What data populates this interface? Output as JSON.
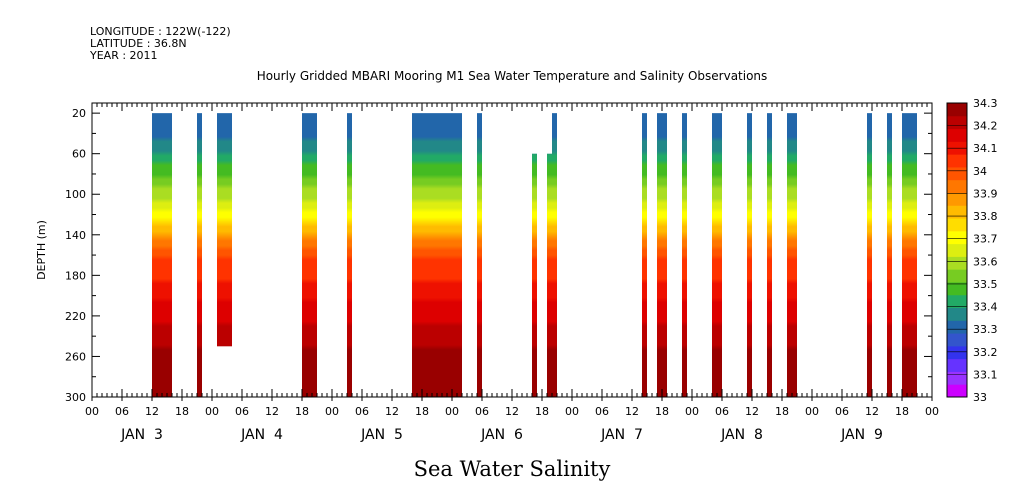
{
  "header": {
    "longitude": "LONGITUDE : 122W(-122)",
    "latitude": "LATITUDE : 36.8N",
    "year": "YEAR : 2011",
    "title": "Hourly Gridded MBARI Mooring M1 Sea Water Temperature and Salinity Observations"
  },
  "footer": {
    "variable_title": "Sea Water Salinity"
  },
  "chart_data": {
    "type": "heatmap",
    "title": "Hourly Gridded MBARI Mooring M1 Sea Water Temperature and Salinity Observations",
    "xlabel": "",
    "ylabel": "DEPTH (m)",
    "variable": "Sea Water Salinity",
    "x_tick_labels": [
      "00",
      "06",
      "12",
      "18",
      "00",
      "06",
      "12",
      "18",
      "00",
      "06",
      "12",
      "18",
      "00",
      "06",
      "12",
      "18",
      "00",
      "06",
      "12",
      "18",
      "00",
      "06",
      "12",
      "18",
      "00",
      "06",
      "12",
      "18",
      "00"
    ],
    "day_labels": [
      "JAN  3",
      "JAN  4",
      "JAN  5",
      "JAN  6",
      "JAN  7",
      "JAN  8",
      "JAN  9"
    ],
    "xlim_hours": [
      0,
      168
    ],
    "y_ticks": [
      20,
      60,
      100,
      140,
      180,
      220,
      260,
      300
    ],
    "ylim": [
      300,
      10
    ],
    "colorbar": {
      "min": 33.0,
      "max": 34.3,
      "labels": [
        "34.3",
        "34.2",
        "34.1",
        "34",
        "33.9",
        "33.8",
        "33.7",
        "33.6",
        "33.5",
        "33.4",
        "33.3",
        "33.2",
        "33.1",
        "33"
      ],
      "colors": [
        "#cc00ff",
        "#9933ff",
        "#6633ff",
        "#3333ee",
        "#3355cc",
        "#2266aa",
        "#228888",
        "#22aa66",
        "#44bb22",
        "#77cc22",
        "#aadd22",
        "#ddee11",
        "#ffff00",
        "#ffdd00",
        "#ffbb00",
        "#ff9900",
        "#ff7700",
        "#ff5500",
        "#ff3300",
        "#ee1100",
        "#dd0000",
        "#bb0000",
        "#990000"
      ]
    },
    "columns": [
      {
        "start": 12,
        "end": 16,
        "top": 20,
        "bottom": 300
      },
      {
        "start": 21,
        "end": 22,
        "top": 20,
        "bottom": 300
      },
      {
        "start": 25,
        "end": 28,
        "top": 20,
        "bottom": 250
      },
      {
        "start": 42,
        "end": 45,
        "top": 20,
        "bottom": 300
      },
      {
        "start": 51,
        "end": 52,
        "top": 20,
        "bottom": 300
      },
      {
        "start": 64,
        "end": 74,
        "top": 20,
        "bottom": 300
      },
      {
        "start": 77,
        "end": 78,
        "top": 20,
        "bottom": 300
      },
      {
        "start": 88,
        "end": 89,
        "top": 60,
        "bottom": 300
      },
      {
        "start": 91,
        "end": 92,
        "top": 60,
        "bottom": 300
      },
      {
        "start": 92,
        "end": 93,
        "top": 20,
        "bottom": 300
      },
      {
        "start": 110,
        "end": 111,
        "top": 20,
        "bottom": 300
      },
      {
        "start": 113,
        "end": 115,
        "top": 20,
        "bottom": 300
      },
      {
        "start": 118,
        "end": 119,
        "top": 20,
        "bottom": 300
      },
      {
        "start": 124,
        "end": 126,
        "top": 20,
        "bottom": 300
      },
      {
        "start": 131,
        "end": 132,
        "top": 20,
        "bottom": 300
      },
      {
        "start": 135,
        "end": 136,
        "top": 20,
        "bottom": 300
      },
      {
        "start": 139,
        "end": 141,
        "top": 20,
        "bottom": 300
      },
      {
        "start": 155,
        "end": 156,
        "top": 20,
        "bottom": 300
      },
      {
        "start": 159,
        "end": 160,
        "top": 20,
        "bottom": 300
      },
      {
        "start": 162,
        "end": 165,
        "top": 20,
        "bottom": 300
      }
    ],
    "salinity_profile": [
      {
        "depth": 20,
        "value": 33.3
      },
      {
        "depth": 50,
        "value": 33.35
      },
      {
        "depth": 70,
        "value": 33.45
      },
      {
        "depth": 90,
        "value": 33.55
      },
      {
        "depth": 110,
        "value": 33.65
      },
      {
        "depth": 125,
        "value": 33.75
      },
      {
        "depth": 140,
        "value": 33.85
      },
      {
        "depth": 155,
        "value": 34.0
      },
      {
        "depth": 180,
        "value": 34.05
      },
      {
        "depth": 210,
        "value": 34.15
      },
      {
        "depth": 240,
        "value": 34.22
      },
      {
        "depth": 270,
        "value": 34.28
      },
      {
        "depth": 300,
        "value": 34.3
      }
    ],
    "grid": false
  }
}
